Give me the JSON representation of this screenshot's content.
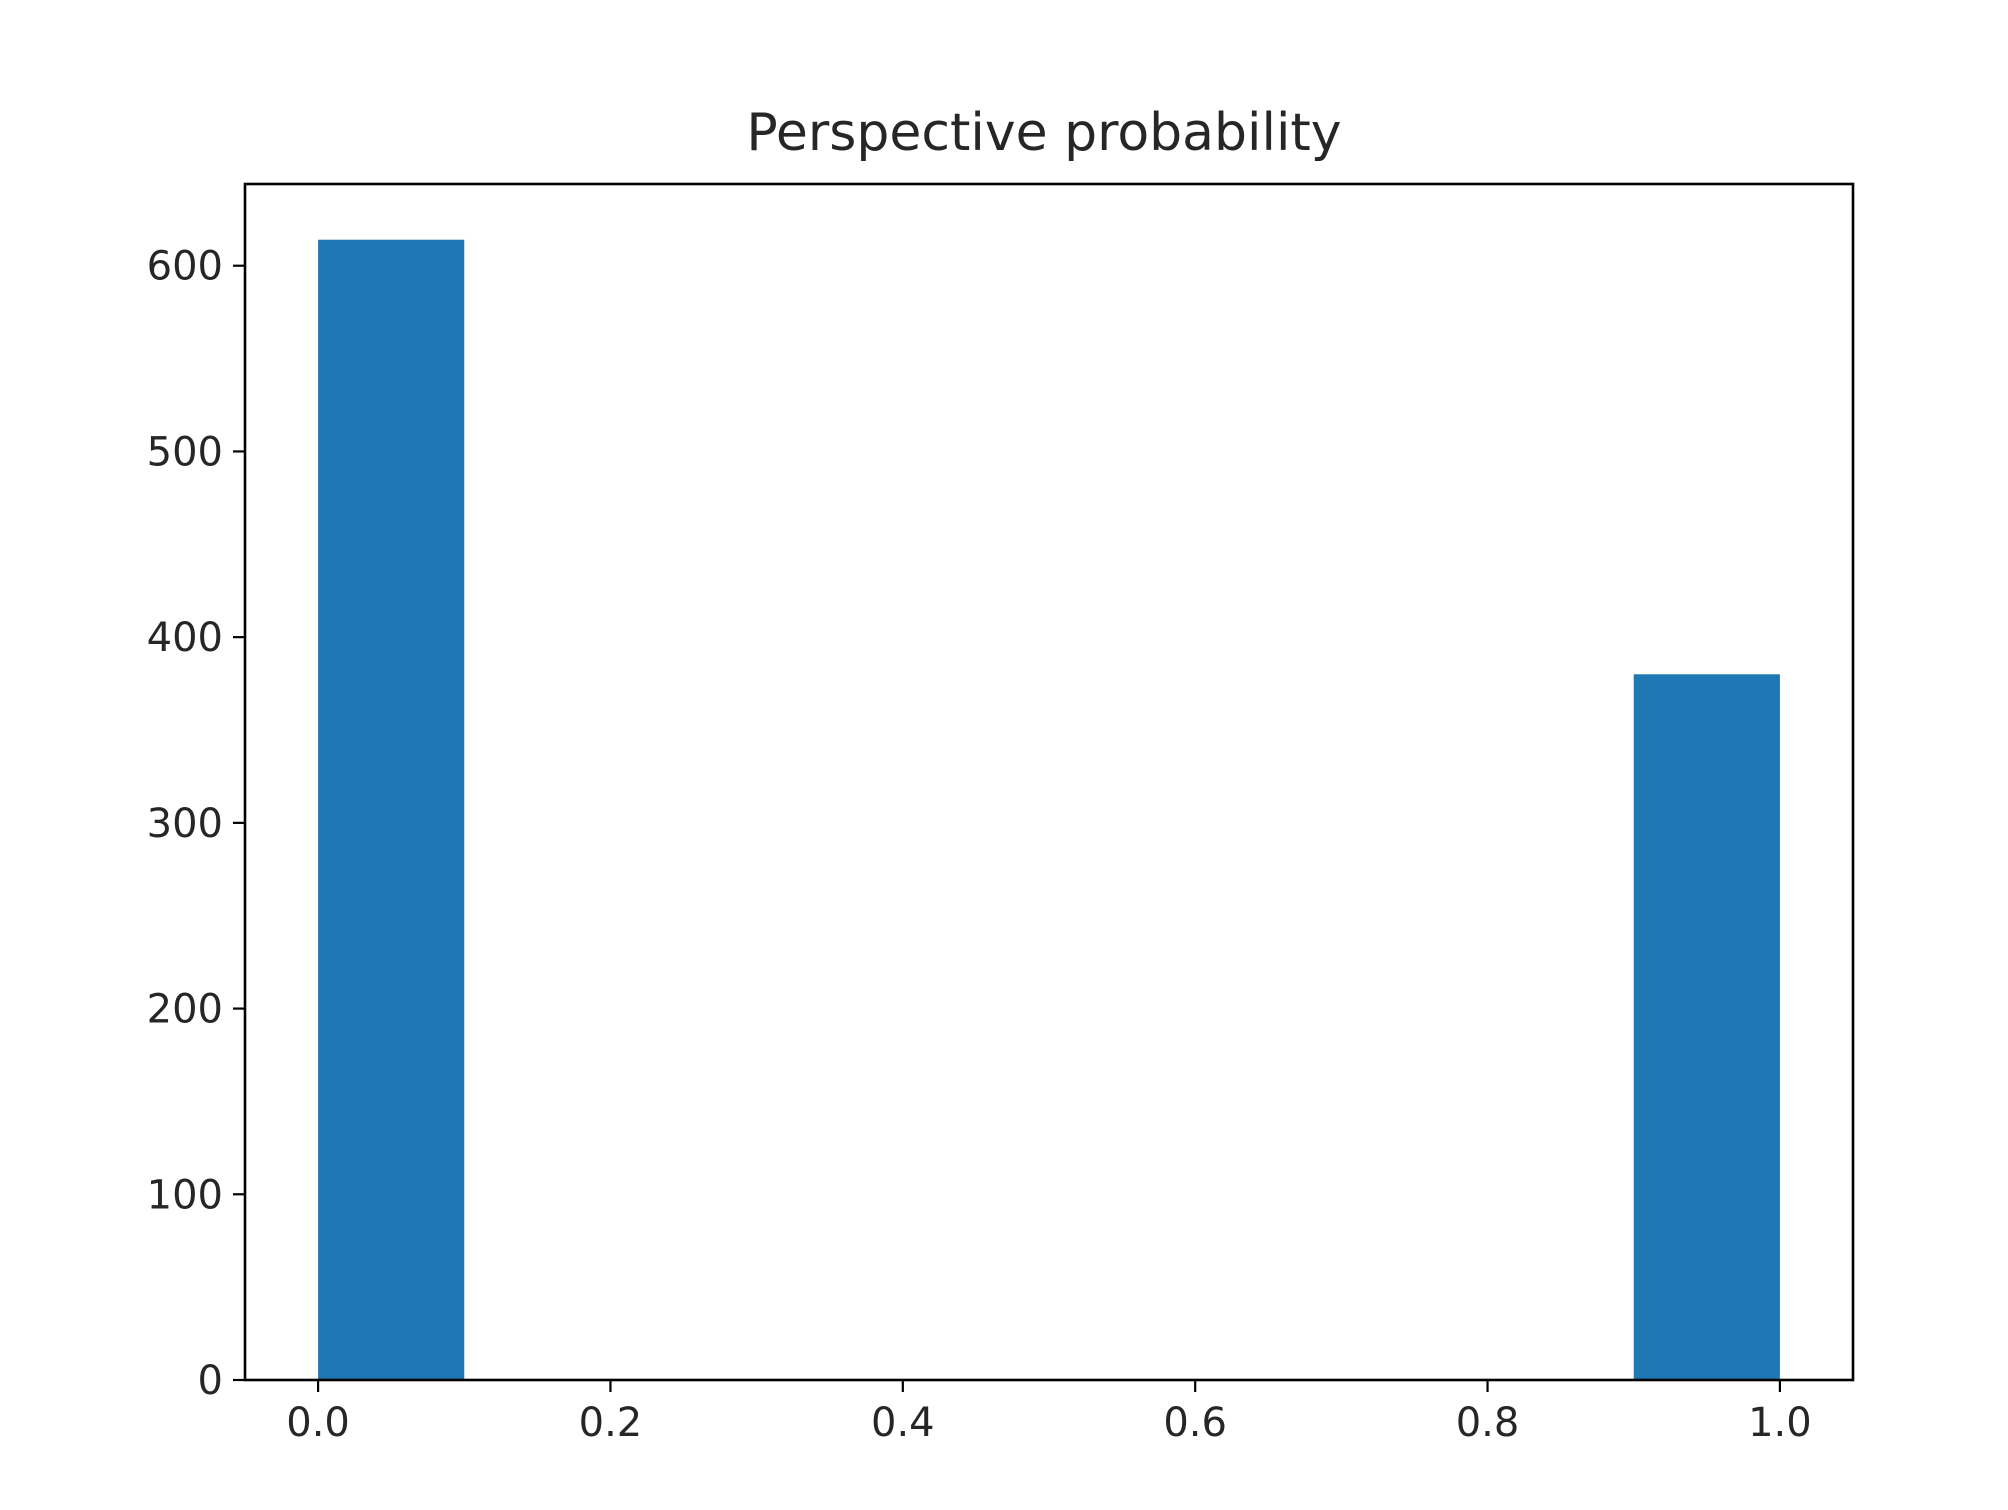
{
  "chart_data": {
    "type": "bar",
    "subtype": "histogram",
    "title": "Perspective probability",
    "xlabel": "",
    "ylabel": "",
    "bins": [
      {
        "x0": 0.0,
        "x1": 0.1,
        "count": 614
      },
      {
        "x0": 0.1,
        "x1": 0.2,
        "count": 0
      },
      {
        "x0": 0.2,
        "x1": 0.3,
        "count": 0
      },
      {
        "x0": 0.3,
        "x1": 0.4,
        "count": 0
      },
      {
        "x0": 0.4,
        "x1": 0.5,
        "count": 0
      },
      {
        "x0": 0.5,
        "x1": 0.6,
        "count": 0
      },
      {
        "x0": 0.6,
        "x1": 0.7,
        "count": 0
      },
      {
        "x0": 0.7,
        "x1": 0.8,
        "count": 0
      },
      {
        "x0": 0.8,
        "x1": 0.9,
        "count": 0
      },
      {
        "x0": 0.9,
        "x1": 1.0,
        "count": 380
      }
    ],
    "xlim": [
      -0.05,
      1.05
    ],
    "ylim": [
      0,
      644
    ],
    "xticks": [
      0.0,
      0.2,
      0.4,
      0.6,
      0.8,
      1.0
    ],
    "xtick_labels": [
      "0.0",
      "0.2",
      "0.4",
      "0.6",
      "0.8",
      "1.0"
    ],
    "yticks": [
      0,
      100,
      200,
      300,
      400,
      500,
      600
    ],
    "ytick_labels": [
      "0",
      "100",
      "200",
      "300",
      "400",
      "500",
      "600"
    ],
    "grid": false,
    "legend": "none",
    "colors": {
      "bar": "#1f77b4",
      "axes": "#000000",
      "text": "#262626",
      "background": "#ffffff"
    }
  }
}
